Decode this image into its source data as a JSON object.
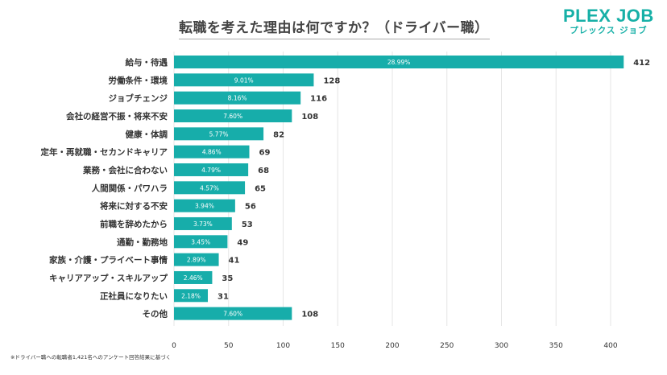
{
  "header": {
    "title": "転職を考えた理由は何ですか？（ドライバー職）",
    "logo_main": "PLEX JOB",
    "logo_sub": "プレックス ジョブ"
  },
  "footnote": "※ドライバー職への転職者1,421名へのアンケート回答結果に基づく",
  "colors": {
    "bar": "#17adaa",
    "grid": "#e6e6e6",
    "text": "#333333"
  },
  "chart_data": {
    "type": "bar",
    "orientation": "horizontal",
    "title": "転職を考えた理由は何ですか？（ドライバー職）",
    "xlabel": "",
    "ylabel": "",
    "xlim": [
      0,
      412
    ],
    "xticks": [
      0,
      50,
      100,
      150,
      200,
      250,
      300,
      350,
      400
    ],
    "grid": true,
    "categories": [
      "給与・待遇",
      "労働条件・環境",
      "ジョブチェンジ",
      "会社の経営不振・将来不安",
      "健康・体調",
      "定年・再就職・セカンドキャリア",
      "業務・会社に合わない",
      "人間関係・パワハラ",
      "将来に対する不安",
      "前職を辞めたから",
      "通勤・勤務地",
      "家族・介護・プライベート事情",
      "キャリアアップ・スキルアップ",
      "正社員になりたい",
      "その他"
    ],
    "values": [
      412,
      128,
      116,
      108,
      82,
      69,
      68,
      65,
      56,
      53,
      49,
      41,
      35,
      31,
      108
    ],
    "percent_labels": [
      "28.99%",
      "9.01%",
      "8.16%",
      "7.60%",
      "5.77%",
      "4.86%",
      "4.79%",
      "4.57%",
      "3.94%",
      "3.73%",
      "3.45%",
      "2.89%",
      "2.46%",
      "2.18%",
      "7.60%"
    ]
  }
}
